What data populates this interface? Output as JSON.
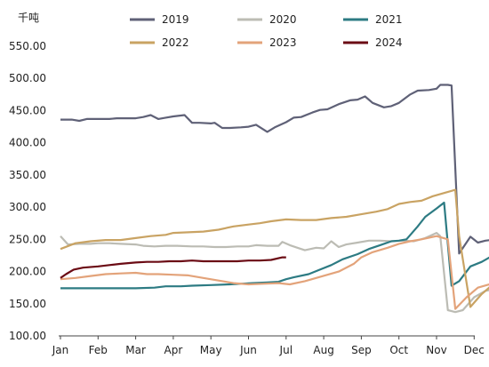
{
  "chart_data": {
    "type": "line",
    "unit_label": "千吨",
    "x": [
      "Jan",
      "Feb",
      "Mar",
      "Apr",
      "May",
      "Jun",
      "Jul",
      "Aug",
      "Sep",
      "Oct",
      "Nov",
      "Dec"
    ],
    "y_ticks": [
      "100.00",
      "150.00",
      "200.00",
      "250.00",
      "300.00",
      "350.00",
      "400.00",
      "450.00",
      "500.00",
      "550.00"
    ],
    "ylim": [
      100,
      550
    ],
    "xlim": [
      1,
      12.6
    ],
    "grid": false,
    "legend_position": "top",
    "series": [
      {
        "name": "2019",
        "color": "#5f6177",
        "points": [
          [
            1.0,
            436
          ],
          [
            1.3,
            436
          ],
          [
            1.5,
            434
          ],
          [
            1.7,
            437
          ],
          [
            2.0,
            437
          ],
          [
            2.3,
            437
          ],
          [
            2.5,
            438
          ],
          [
            2.8,
            438
          ],
          [
            3.0,
            438
          ],
          [
            3.2,
            440
          ],
          [
            3.4,
            443
          ],
          [
            3.6,
            437
          ],
          [
            3.8,
            439
          ],
          [
            4.0,
            441
          ],
          [
            4.3,
            443
          ],
          [
            4.5,
            431
          ],
          [
            4.7,
            431
          ],
          [
            5.0,
            430
          ],
          [
            5.1,
            431
          ],
          [
            5.3,
            423
          ],
          [
            5.5,
            423
          ],
          [
            5.8,
            424
          ],
          [
            6.0,
            425
          ],
          [
            6.2,
            428
          ],
          [
            6.5,
            417
          ],
          [
            6.7,
            424
          ],
          [
            7.0,
            432
          ],
          [
            7.2,
            439
          ],
          [
            7.4,
            440
          ],
          [
            7.7,
            447
          ],
          [
            7.9,
            451
          ],
          [
            8.1,
            452
          ],
          [
            8.4,
            460
          ],
          [
            8.7,
            466
          ],
          [
            8.9,
            467
          ],
          [
            9.1,
            472
          ],
          [
            9.3,
            462
          ],
          [
            9.6,
            455
          ],
          [
            9.8,
            457
          ],
          [
            10.0,
            462
          ],
          [
            10.3,
            475
          ],
          [
            10.5,
            481
          ],
          [
            10.8,
            482
          ],
          [
            11.0,
            484
          ],
          [
            11.1,
            490
          ],
          [
            11.3,
            490
          ],
          [
            11.4,
            489
          ],
          [
            11.6,
            228
          ],
          [
            11.9,
            254
          ],
          [
            12.1,
            245
          ],
          [
            12.3,
            248
          ],
          [
            12.6,
            250
          ]
        ]
      },
      {
        "name": "2020",
        "color": "#bcbcb4",
        "points": [
          [
            1.0,
            255
          ],
          [
            1.2,
            242
          ],
          [
            1.5,
            243
          ],
          [
            1.8,
            243
          ],
          [
            2.0,
            244
          ],
          [
            2.3,
            244
          ],
          [
            2.6,
            243
          ],
          [
            3.0,
            242
          ],
          [
            3.2,
            240
          ],
          [
            3.5,
            239
          ],
          [
            3.8,
            240
          ],
          [
            4.1,
            240
          ],
          [
            4.5,
            239
          ],
          [
            4.8,
            239
          ],
          [
            5.1,
            238
          ],
          [
            5.4,
            238
          ],
          [
            5.7,
            239
          ],
          [
            6.0,
            239
          ],
          [
            6.2,
            241
          ],
          [
            6.5,
            240
          ],
          [
            6.8,
            240
          ],
          [
            6.9,
            246
          ],
          [
            7.1,
            241
          ],
          [
            7.3,
            237
          ],
          [
            7.5,
            233
          ],
          [
            7.8,
            237
          ],
          [
            8.0,
            236
          ],
          [
            8.2,
            247
          ],
          [
            8.4,
            238
          ],
          [
            8.6,
            242
          ],
          [
            8.9,
            245
          ],
          [
            9.2,
            248
          ],
          [
            9.5,
            248
          ],
          [
            9.8,
            247
          ],
          [
            10.1,
            248
          ],
          [
            10.4,
            247
          ],
          [
            10.7,
            252
          ],
          [
            11.0,
            260
          ],
          [
            11.1,
            255
          ],
          [
            11.3,
            140
          ],
          [
            11.5,
            137
          ],
          [
            11.7,
            140
          ],
          [
            12.0,
            160
          ],
          [
            12.3,
            170
          ],
          [
            12.6,
            173
          ]
        ]
      },
      {
        "name": "2021",
        "color": "#2d7b83",
        "points": [
          [
            1.0,
            174
          ],
          [
            1.5,
            174
          ],
          [
            2.0,
            174
          ],
          [
            2.5,
            174
          ],
          [
            3.0,
            174
          ],
          [
            3.5,
            175
          ],
          [
            3.8,
            177
          ],
          [
            4.2,
            177
          ],
          [
            4.5,
            178
          ],
          [
            5.0,
            179
          ],
          [
            5.5,
            180
          ],
          [
            5.8,
            181
          ],
          [
            6.1,
            182
          ],
          [
            6.5,
            183
          ],
          [
            6.8,
            184
          ],
          [
            7.0,
            188
          ],
          [
            7.2,
            191
          ],
          [
            7.6,
            196
          ],
          [
            7.9,
            203
          ],
          [
            8.2,
            210
          ],
          [
            8.5,
            219
          ],
          [
            8.9,
            227
          ],
          [
            9.2,
            235
          ],
          [
            9.5,
            241
          ],
          [
            9.8,
            247
          ],
          [
            10.0,
            248
          ],
          [
            10.2,
            250
          ],
          [
            10.5,
            270
          ],
          [
            10.7,
            285
          ],
          [
            11.0,
            298
          ],
          [
            11.2,
            307
          ],
          [
            11.4,
            178
          ],
          [
            11.6,
            185
          ],
          [
            11.9,
            208
          ],
          [
            12.2,
            215
          ],
          [
            12.5,
            225
          ],
          [
            12.6,
            229
          ]
        ]
      },
      {
        "name": "2022",
        "color": "#c9a363",
        "points": [
          [
            1.0,
            235
          ],
          [
            1.4,
            244
          ],
          [
            1.8,
            247
          ],
          [
            2.2,
            249
          ],
          [
            2.6,
            249
          ],
          [
            3.0,
            252
          ],
          [
            3.4,
            255
          ],
          [
            3.8,
            257
          ],
          [
            4.0,
            260
          ],
          [
            4.4,
            261
          ],
          [
            4.8,
            262
          ],
          [
            5.2,
            265
          ],
          [
            5.6,
            270
          ],
          [
            6.0,
            273
          ],
          [
            6.3,
            275
          ],
          [
            6.6,
            278
          ],
          [
            7.0,
            281
          ],
          [
            7.4,
            280
          ],
          [
            7.8,
            280
          ],
          [
            8.2,
            283
          ],
          [
            8.6,
            285
          ],
          [
            9.0,
            289
          ],
          [
            9.4,
            293
          ],
          [
            9.7,
            297
          ],
          [
            10.0,
            305
          ],
          [
            10.3,
            308
          ],
          [
            10.6,
            310
          ],
          [
            10.9,
            317
          ],
          [
            11.2,
            322
          ],
          [
            11.5,
            327
          ],
          [
            11.6,
            255
          ],
          [
            11.9,
            145
          ],
          [
            12.2,
            165
          ],
          [
            12.6,
            185
          ]
        ]
      },
      {
        "name": "2023",
        "color": "#e3a37a",
        "points": [
          [
            1.0,
            188
          ],
          [
            1.4,
            190
          ],
          [
            1.8,
            193
          ],
          [
            2.2,
            196
          ],
          [
            2.6,
            197
          ],
          [
            3.0,
            198
          ],
          [
            3.3,
            196
          ],
          [
            3.6,
            196
          ],
          [
            4.0,
            195
          ],
          [
            4.4,
            194
          ],
          [
            4.8,
            190
          ],
          [
            5.2,
            186
          ],
          [
            5.6,
            182
          ],
          [
            6.0,
            180
          ],
          [
            6.4,
            181
          ],
          [
            6.8,
            182
          ],
          [
            7.1,
            180
          ],
          [
            7.5,
            185
          ],
          [
            7.8,
            190
          ],
          [
            8.1,
            195
          ],
          [
            8.4,
            200
          ],
          [
            8.8,
            212
          ],
          [
            9.0,
            222
          ],
          [
            9.3,
            230
          ],
          [
            9.7,
            237
          ],
          [
            10.0,
            243
          ],
          [
            10.3,
            247
          ],
          [
            10.6,
            250
          ],
          [
            11.0,
            255
          ],
          [
            11.3,
            250
          ],
          [
            11.5,
            142
          ],
          [
            11.8,
            160
          ],
          [
            12.1,
            175
          ],
          [
            12.4,
            180
          ],
          [
            12.6,
            185
          ]
        ]
      },
      {
        "name": "2024",
        "color": "#6b0b14",
        "points": [
          [
            1.0,
            190
          ],
          [
            1.15,
            196
          ],
          [
            1.35,
            203
          ],
          [
            1.6,
            206
          ],
          [
            2.0,
            208
          ],
          [
            2.3,
            210
          ],
          [
            2.6,
            212
          ],
          [
            3.0,
            214
          ],
          [
            3.3,
            215
          ],
          [
            3.6,
            215
          ],
          [
            3.9,
            216
          ],
          [
            4.2,
            216
          ],
          [
            4.5,
            217
          ],
          [
            4.8,
            216
          ],
          [
            5.1,
            216
          ],
          [
            5.4,
            216
          ],
          [
            5.7,
            216
          ],
          [
            6.0,
            217
          ],
          [
            6.3,
            217
          ],
          [
            6.6,
            218
          ],
          [
            6.9,
            222
          ],
          [
            7.0,
            222
          ]
        ]
      }
    ]
  }
}
